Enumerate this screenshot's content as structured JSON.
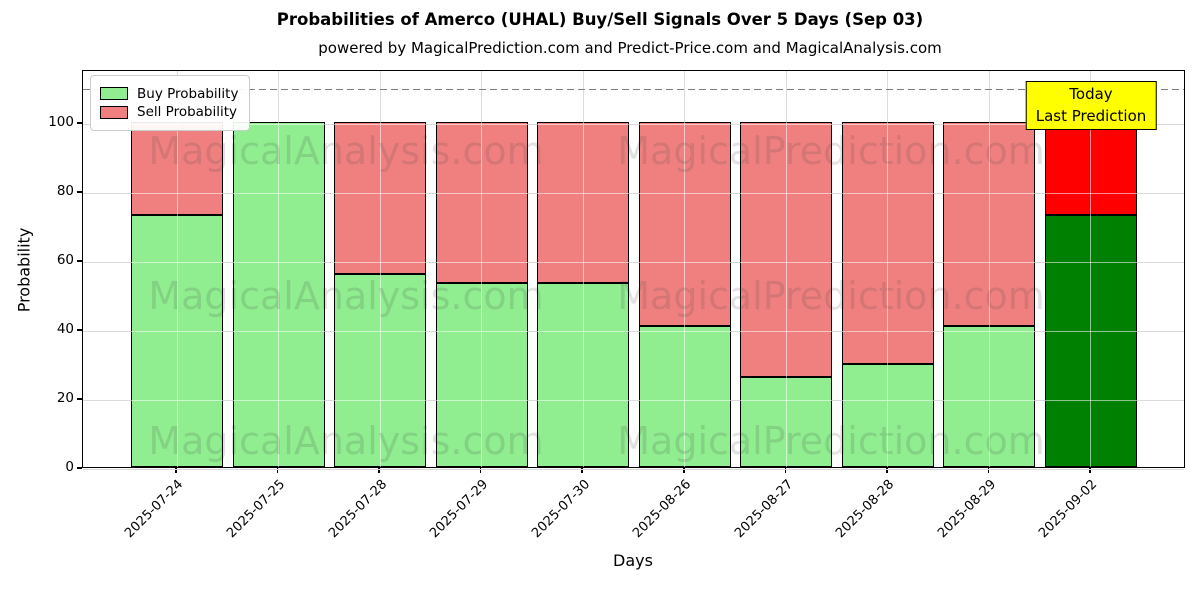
{
  "title": "Probabilities of Amerco (UHAL) Buy/Sell Signals Over 5 Days (Sep 03)",
  "subtitle": "powered by MagicalPrediction.com and Predict-Price.com and MagicalAnalysis.com",
  "annotation": {
    "line1": "Today",
    "line2": "Last Prediction",
    "bg_color": "#ffff00",
    "border_color": "#000000"
  },
  "watermarks": {
    "left_text": "MagicalAnalysis.com",
    "right_text": "MagicalPrediction.com"
  },
  "chart_data": {
    "type": "bar",
    "stacked": true,
    "title": "Probabilities of Amerco (UHAL) Buy/Sell Signals Over 5 Days (Sep 03)",
    "xlabel": "Days",
    "ylabel": "Probability",
    "categories": [
      "2025-07-24",
      "2025-07-25",
      "2025-07-28",
      "2025-07-29",
      "2025-07-30",
      "2025-08-26",
      "2025-08-27",
      "2025-08-28",
      "2025-08-29",
      "2025-09-02"
    ],
    "series": [
      {
        "name": "Buy Probability",
        "color": "#90ee90",
        "last_bar_color": "#008000",
        "values": [
          73,
          100,
          56,
          53.5,
          53.5,
          41,
          26,
          30,
          41,
          73
        ]
      },
      {
        "name": "Sell Probability",
        "color": "#f08080",
        "last_bar_color": "#ff0000",
        "values": [
          27,
          0,
          44,
          46.5,
          46.5,
          59,
          74,
          70,
          59,
          27
        ]
      }
    ],
    "bar_edge_color": "#000000",
    "yticks": [
      0,
      20,
      40,
      60,
      80,
      100
    ],
    "ylim": [
      0,
      115.4
    ],
    "threshold_line": {
      "y": 110,
      "style": "dashed",
      "color": "#7f7f7f"
    },
    "grid": true,
    "legend_position": "upper left"
  }
}
